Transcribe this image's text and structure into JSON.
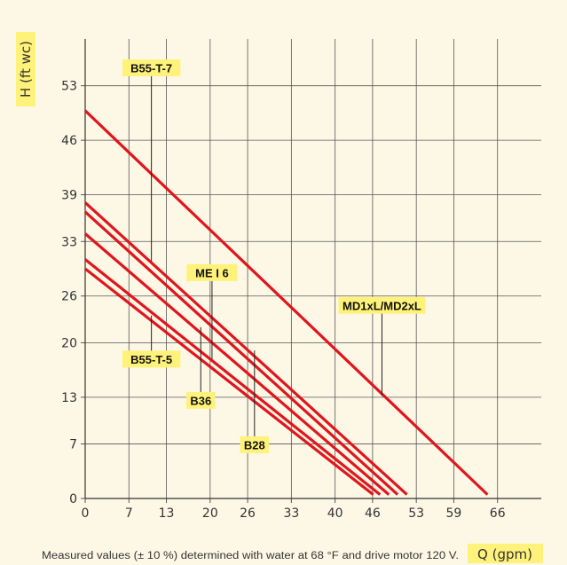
{
  "chart_data": {
    "type": "line",
    "xlabel": "Q (gpm)",
    "ylabel": "H (ft wc)",
    "footnote": "Measured values (± 10 %) determined with water at 68 °F and drive motor 120 V.",
    "x_ticks": [
      "0",
      "7",
      "13",
      "20",
      "26",
      "33",
      "40",
      "46",
      "53",
      "59",
      "66"
    ],
    "y_ticks": [
      "0",
      "7",
      "13",
      "20",
      "26",
      "33",
      "39",
      "46",
      "53"
    ],
    "xlim": [
      0,
      73
    ],
    "ylim": [
      0,
      59
    ],
    "colors": {
      "line": "#e0161e",
      "label_bg": "#fff27a",
      "grid": "#555555",
      "background": "#fdf8e6"
    },
    "series": [
      {
        "name": "MD1xL/MD2xL",
        "x": [
          0,
          64.4
        ],
        "y": [
          49.8,
          0.5
        ]
      },
      {
        "name": "ME I 6",
        "x": [
          0,
          51.5
        ],
        "y": [
          38.0,
          0.5
        ]
      },
      {
        "name": "B36",
        "x": [
          0,
          50.0
        ],
        "y": [
          36.8,
          0.5
        ]
      },
      {
        "name": "B28",
        "x": [
          0,
          48.6
        ],
        "y": [
          34.0,
          0.5
        ]
      },
      {
        "name": "B55-T-5",
        "x": [
          0,
          47.2
        ],
        "y": [
          30.7,
          0.5
        ]
      },
      {
        "name": "B55-T-7",
        "x": [
          0,
          46.1
        ],
        "y": [
          29.5,
          0.5
        ]
      }
    ],
    "labels": [
      {
        "text": "B55-T-7",
        "anchor_x": 10.6,
        "anchor_y": 30.5,
        "label_x": 10.6,
        "label_y": 55.3
      },
      {
        "text": "ME I 6",
        "anchor_x": 20.3,
        "anchor_y": 17.9,
        "label_x": 20.3,
        "label_y": 29.0
      },
      {
        "text": "MD1xL/MD2xL",
        "anchor_x": 47.5,
        "anchor_y": 13.2,
        "label_x": 47.5,
        "label_y": 24.8
      },
      {
        "text": "B55-T-5",
        "anchor_x": 10.6,
        "anchor_y": 23.5,
        "label_x": 10.6,
        "label_y": 17.9
      },
      {
        "text": "B36",
        "anchor_x": 18.5,
        "anchor_y": 22.0,
        "label_x": 18.5,
        "label_y": 12.6
      },
      {
        "text": "B28",
        "anchor_x": 27.1,
        "anchor_y": 19.0,
        "label_x": 27.1,
        "label_y": 6.9
      }
    ]
  }
}
